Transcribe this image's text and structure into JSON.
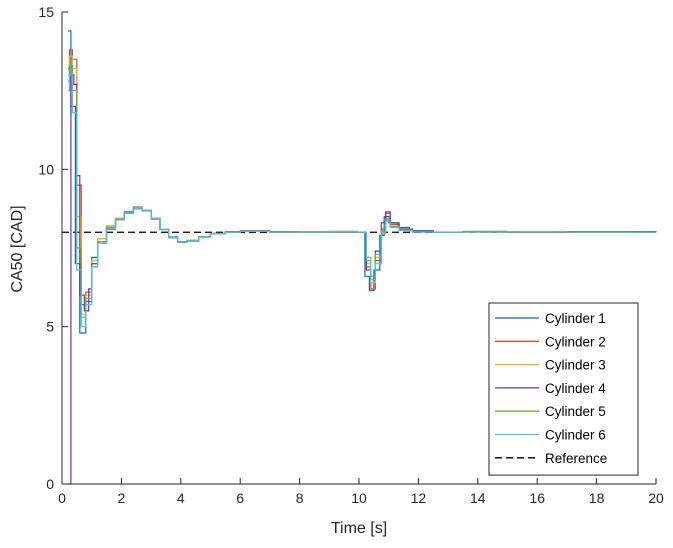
{
  "chart_data": {
    "type": "line",
    "xlabel": "Time [s]",
    "ylabel": "CA50 [CAD]",
    "xlim": [
      0,
      20
    ],
    "ylim": [
      0,
      15
    ],
    "xticks": [
      0,
      2,
      4,
      6,
      8,
      10,
      12,
      14,
      16,
      18,
      20
    ],
    "yticks": [
      0,
      5,
      10,
      15
    ],
    "grid": false,
    "legend": "bottom-right",
    "reference": {
      "name": "Reference",
      "y": 8,
      "color": "#000000",
      "style": "dashed"
    },
    "series": [
      {
        "name": "Cylinder 1",
        "color": "#0072BD",
        "x": [
          0.2,
          0.25,
          0.3,
          0.45,
          0.6,
          0.8,
          1.0,
          1.2,
          1.5,
          1.8,
          2.1,
          2.4,
          2.7,
          3.0,
          3.3,
          3.6,
          3.9,
          4.2,
          4.6,
          5.0,
          5.5,
          6.0,
          7.0,
          8.0,
          9.0,
          9.9,
          10.2,
          10.35,
          10.5,
          10.7,
          10.85,
          11.0,
          11.3,
          11.7,
          12.5,
          13.5,
          15.0,
          17.0,
          19.0,
          20.0
        ],
        "y": [
          14.4,
          14.4,
          12.0,
          7.0,
          4.8,
          5.8,
          7.2,
          7.8,
          8.2,
          8.45,
          8.65,
          8.8,
          8.7,
          8.45,
          8.1,
          7.85,
          7.7,
          7.72,
          7.85,
          7.95,
          8.0,
          8.05,
          8.0,
          8.02,
          8.0,
          8.0,
          6.6,
          6.15,
          6.8,
          7.9,
          8.5,
          8.3,
          8.15,
          8.05,
          8.0,
          8.02,
          8.0,
          8.0,
          8.02,
          8.0
        ]
      },
      {
        "name": "Cylinder 2",
        "color": "#D95319",
        "x": [
          0.2,
          0.25,
          0.35,
          0.5,
          0.65,
          0.8,
          1.0,
          1.2,
          1.5,
          1.8,
          2.1,
          2.4,
          2.7,
          3.0,
          3.3,
          3.6,
          3.9,
          4.2,
          4.6,
          5.0,
          5.5,
          6.0,
          7.0,
          8.0,
          9.0,
          9.95,
          10.25,
          10.4,
          10.55,
          10.75,
          10.9,
          11.05,
          11.35,
          11.8,
          12.5,
          13.5,
          15.0,
          17.0,
          19.0,
          20.0
        ],
        "y": [
          13.2,
          13.8,
          13.5,
          9.5,
          5.7,
          6.1,
          7.0,
          7.7,
          8.15,
          8.4,
          8.6,
          8.75,
          8.68,
          8.42,
          8.08,
          7.82,
          7.68,
          7.74,
          7.86,
          7.96,
          8.02,
          8.05,
          8.02,
          8.0,
          8.03,
          8.0,
          6.9,
          6.2,
          7.1,
          8.1,
          8.6,
          8.25,
          8.1,
          8.02,
          8.0,
          8.03,
          8.0,
          8.02,
          8.0,
          8.0
        ]
      },
      {
        "name": "Cylinder 3",
        "color": "#EDB120",
        "x": [
          0.2,
          0.25,
          0.35,
          0.5,
          0.65,
          0.8,
          1.0,
          1.2,
          1.5,
          1.8,
          2.1,
          2.4,
          2.7,
          3.0,
          3.3,
          3.6,
          3.9,
          4.2,
          4.6,
          5.0,
          5.5,
          6.0,
          7.0,
          8.0,
          9.0,
          9.95,
          10.25,
          10.4,
          10.55,
          10.75,
          10.9,
          11.05,
          11.35,
          11.8,
          12.5,
          13.5,
          15.0,
          17.0,
          19.0,
          20.0
        ],
        "y": [
          13.0,
          13.6,
          13.2,
          8.5,
          5.4,
          6.0,
          7.1,
          7.8,
          8.2,
          8.45,
          8.62,
          8.78,
          8.7,
          8.44,
          8.1,
          7.84,
          7.7,
          7.73,
          7.85,
          7.95,
          8.0,
          8.04,
          8.0,
          8.02,
          8.0,
          8.0,
          7.0,
          6.4,
          7.2,
          8.0,
          8.45,
          8.2,
          8.08,
          8.02,
          8.0,
          8.01,
          8.0,
          8.0,
          8.01,
          8.0
        ]
      },
      {
        "name": "Cylinder 4",
        "color": "#7E2F8E",
        "x": [
          0.2,
          0.25,
          0.3,
          0.4,
          0.5,
          0.6,
          0.75,
          0.9,
          1.0,
          1.2,
          1.5,
          1.8,
          2.1,
          2.4,
          2.7,
          3.0,
          3.3,
          3.6,
          3.9,
          4.2,
          4.6,
          5.0,
          5.5,
          6.0,
          7.0,
          8.0,
          9.0,
          9.95,
          10.25,
          10.4,
          10.55,
          10.75,
          10.9,
          11.05,
          11.35,
          11.8,
          12.5,
          13.5,
          15.0,
          17.0,
          19.0,
          20.0
        ],
        "y": [
          0.0,
          0.0,
          13.0,
          12.7,
          9.8,
          6.0,
          5.5,
          6.2,
          7.0,
          7.7,
          8.1,
          8.4,
          8.6,
          8.75,
          8.68,
          8.43,
          8.1,
          7.84,
          7.69,
          7.73,
          7.86,
          7.96,
          8.01,
          8.04,
          8.01,
          8.0,
          8.02,
          8.0,
          6.8,
          6.5,
          7.4,
          8.3,
          8.65,
          8.3,
          8.1,
          8.03,
          8.0,
          8.02,
          8.0,
          8.01,
          8.0,
          8.0
        ]
      },
      {
        "name": "Cylinder 5",
        "color": "#77AC30",
        "x": [
          0.2,
          0.25,
          0.35,
          0.5,
          0.65,
          0.8,
          1.0,
          1.2,
          1.5,
          1.8,
          2.1,
          2.4,
          2.7,
          3.0,
          3.3,
          3.6,
          3.9,
          4.2,
          4.6,
          5.0,
          5.5,
          6.0,
          7.0,
          8.0,
          9.0,
          9.95,
          10.25,
          10.4,
          10.55,
          10.75,
          10.9,
          11.05,
          11.35,
          11.8,
          12.5,
          13.5,
          15.0,
          17.0,
          19.0,
          20.0
        ],
        "y": [
          12.8,
          13.3,
          12.5,
          7.5,
          5.3,
          5.9,
          6.9,
          7.7,
          8.15,
          8.42,
          8.6,
          8.76,
          8.69,
          8.43,
          8.09,
          7.83,
          7.69,
          7.74,
          7.86,
          7.96,
          8.01,
          8.04,
          8.0,
          8.01,
          8.0,
          8.0,
          7.1,
          6.6,
          7.3,
          8.05,
          8.4,
          8.18,
          8.07,
          8.01,
          8.0,
          8.02,
          8.0,
          8.01,
          8.0,
          8.0
        ]
      },
      {
        "name": "Cylinder 6",
        "color": "#4DBEEE",
        "x": [
          0.2,
          0.25,
          0.35,
          0.5,
          0.65,
          0.8,
          1.0,
          1.2,
          1.5,
          1.8,
          2.1,
          2.4,
          2.7,
          3.0,
          3.3,
          3.6,
          3.9,
          4.2,
          4.6,
          5.0,
          5.5,
          6.0,
          7.0,
          8.0,
          9.0,
          9.95,
          10.25,
          10.4,
          10.55,
          10.75,
          10.9,
          11.05,
          11.35,
          11.8,
          12.5,
          13.5,
          15.0,
          17.0,
          19.0,
          20.0
        ],
        "y": [
          12.5,
          13.0,
          11.8,
          6.8,
          5.0,
          5.7,
          6.9,
          7.65,
          8.12,
          8.4,
          8.6,
          8.77,
          8.7,
          8.44,
          8.1,
          7.83,
          7.7,
          7.73,
          7.85,
          7.95,
          8.0,
          8.03,
          8.01,
          8.0,
          8.02,
          8.0,
          7.2,
          6.5,
          7.0,
          7.95,
          8.35,
          8.15,
          8.06,
          8.01,
          8.0,
          8.0,
          8.02,
          8.0,
          8.0,
          8.0
        ]
      }
    ]
  }
}
